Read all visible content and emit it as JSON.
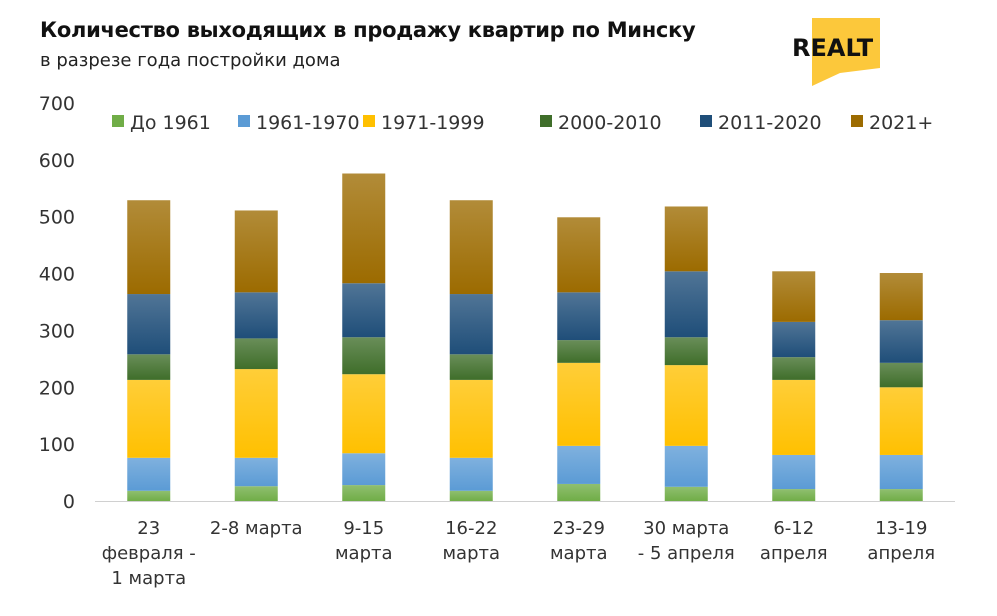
{
  "header": {
    "title": "Количество выходящих в продажу квартир по Минску",
    "subtitle": "в разрезе года постройки дома",
    "logo_text": "REALT"
  },
  "chart_data": {
    "type": "bar",
    "stacked": true,
    "title": "Количество выходящих в продажу квартир по Минску",
    "subtitle": "в разрезе года постройки дома",
    "xlabel": "",
    "ylabel": "",
    "ylim": [
      0,
      700
    ],
    "yticks": [
      0,
      100,
      200,
      300,
      400,
      500,
      600,
      700
    ],
    "grid": false,
    "legend_position": "top",
    "categories": [
      "23\nфевраля -\n1 марта",
      "2-8 марта",
      "9-15\nмарта",
      "16-22\nмарта",
      "23-29\nмарта",
      "30 марта\n- 5 апреля",
      "6-12\nапреля",
      "13-19\nапреля"
    ],
    "series": [
      {
        "name": "До 1961",
        "color": "#70ad47",
        "values": [
          18,
          26,
          28,
          18,
          30,
          25,
          21,
          21
        ]
      },
      {
        "name": "1961-1970",
        "color": "#5b9bd5",
        "values": [
          58,
          50,
          56,
          58,
          67,
          72,
          60,
          60
        ]
      },
      {
        "name": "1971-1999",
        "color": "#ffc000",
        "values": [
          137,
          156,
          139,
          137,
          146,
          142,
          132,
          119
        ]
      },
      {
        "name": "2000-2010",
        "color": "#3f6e2a",
        "values": [
          45,
          54,
          65,
          45,
          40,
          49,
          40,
          43
        ]
      },
      {
        "name": "2011-2020",
        "color": "#1f4e79",
        "values": [
          106,
          81,
          95,
          106,
          84,
          116,
          62,
          75
        ]
      },
      {
        "name": "2021+",
        "color": "#9c6b00",
        "values": [
          165,
          144,
          193,
          165,
          132,
          114,
          89,
          83
        ]
      }
    ]
  }
}
